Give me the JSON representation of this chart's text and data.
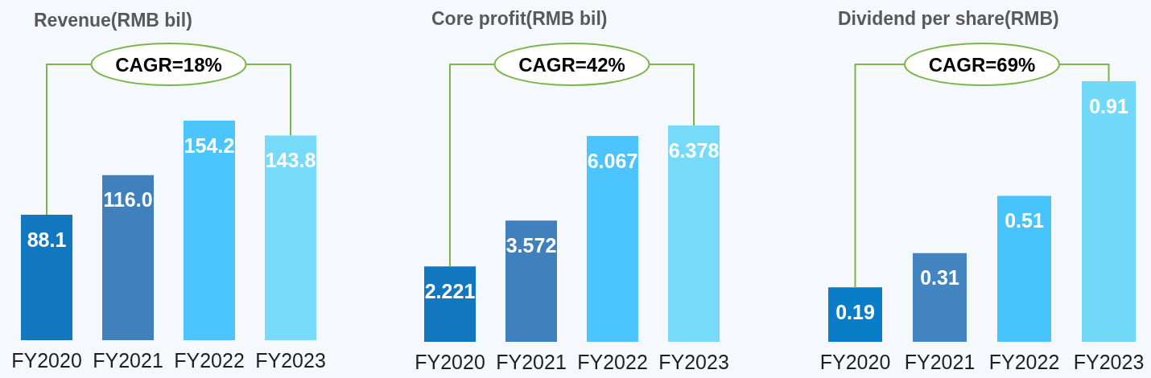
{
  "chart_data": [
    {
      "type": "bar",
      "title": "Revenue(RMB bil)",
      "categories": [
        "FY2020",
        "FY2021",
        "FY2022",
        "FY2023"
      ],
      "values": [
        88.1,
        116.0,
        154.2,
        143.8
      ],
      "colors": [
        "#1177bf",
        "#4080bd",
        "#4cc5fe",
        "#76daf9"
      ],
      "value_labels": [
        "88.1",
        "116.0",
        "154.2",
        "143.8"
      ],
      "annotations": [
        "CAGR=18%"
      ],
      "tick_labels": "x"
    },
    {
      "type": "bar",
      "title": "Core profit(RMB bil)",
      "categories": [
        "FY2020",
        "FY2021",
        "FY2022",
        "FY2023"
      ],
      "values": [
        2.221,
        3.572,
        6.067,
        6.378
      ],
      "colors": [
        "#1177bf",
        "#4080bd",
        "#4cc5fe",
        "#76daf9"
      ],
      "data_labels": true,
      "annotations": [
        "CAGR=42%"
      ],
      "tick_labels": "x"
    },
    {
      "type": "bar",
      "title": "Dividend per share(RMB)",
      "categories": [
        "FY2020",
        "FY2021",
        "FY2022",
        "FY2023"
      ],
      "values": [
        0.19,
        0.31,
        0.51,
        0.91
      ],
      "colors": [
        "#0a7dc8",
        "#4385c1",
        "#48c4fc",
        "#72d9f8"
      ],
      "data_labels": true,
      "annotations": [
        "CAGR=69%"
      ],
      "tick_labels": "x"
    }
  ]
}
